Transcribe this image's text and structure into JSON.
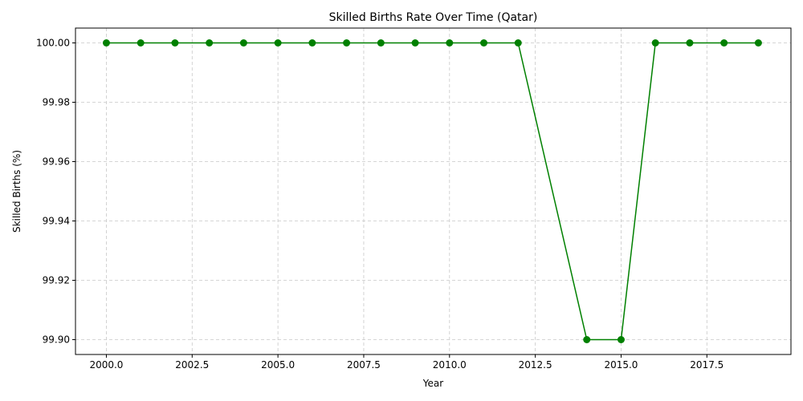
{
  "chart_data": {
    "type": "line",
    "title": "Skilled Births Rate Over Time (Qatar)",
    "xlabel": "Year",
    "ylabel": "Skilled Births (%)",
    "xlim": [
      1999.1,
      2019.95
    ],
    "ylim": [
      99.895,
      100.005
    ],
    "x_ticks": [
      2000.0,
      2002.5,
      2005.0,
      2007.5,
      2010.0,
      2012.5,
      2015.0,
      2017.5
    ],
    "x_tick_labels": [
      "2000.0",
      "2002.5",
      "2005.0",
      "2007.5",
      "2010.0",
      "2012.5",
      "2015.0",
      "2017.5"
    ],
    "y_ticks": [
      99.9,
      99.92,
      99.94,
      99.96,
      99.98,
      100.0
    ],
    "y_tick_labels": [
      "99.90",
      "99.92",
      "99.94",
      "99.96",
      "99.98",
      "100.00"
    ],
    "grid": true,
    "line_color": "#008000",
    "grid_color": "#c8c8c8",
    "series": [
      {
        "x": [
          2000,
          2001,
          2002,
          2003,
          2004,
          2005,
          2006,
          2007,
          2008,
          2009,
          2010,
          2011,
          2012,
          2014,
          2015,
          2016,
          2017,
          2018,
          2019
        ],
        "values": [
          100.0,
          100.0,
          100.0,
          100.0,
          100.0,
          100.0,
          100.0,
          100.0,
          100.0,
          100.0,
          100.0,
          100.0,
          100.0,
          99.9,
          99.9,
          100.0,
          100.0,
          100.0,
          100.0
        ]
      }
    ]
  }
}
